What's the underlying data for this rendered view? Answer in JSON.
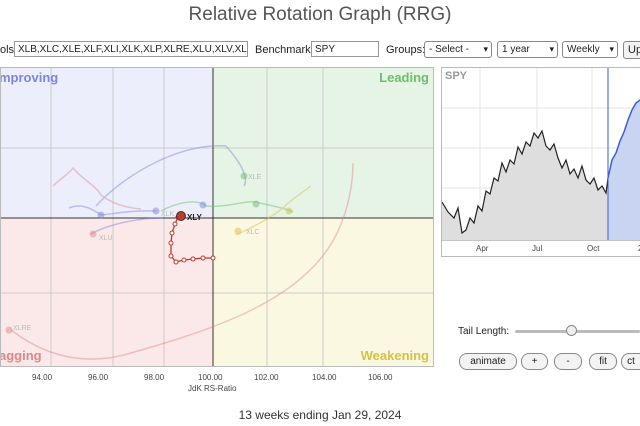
{
  "title": "Relative Rotation Graph (RRG)",
  "toolbar": {
    "symbols_label": "ols:",
    "symbols_value": "XLB,XLC,XLE,XLF,XLI,XLK,XLP,XLRE,XLU,XLV,XL",
    "benchmark_label": "Benchmark:",
    "benchmark_value": "SPY",
    "groups_label": "Groups:",
    "groups_value": "- Select -",
    "period_value": "1 year",
    "interval_value": "Weekly",
    "update_label": "Up"
  },
  "quadrants": {
    "improving": "mproving",
    "leading": "Leading",
    "lagging": "agging",
    "weakening": "Weakening"
  },
  "colors": {
    "improving": "#7c86d8",
    "leading": "#6cbf6c",
    "lagging": "#e08888",
    "weakening": "#d6c04a",
    "benchmark_line": "#3a5fd0"
  },
  "rrg": {
    "x_ticks": [
      "94.00",
      "96.00",
      "98.00",
      "100.00",
      "102.00",
      "104.00",
      "106.00"
    ],
    "x_label": "JdK RS-Ratio",
    "highlight_symbol": "XLY",
    "faded_labels": [
      "XLRE",
      "XLU",
      "XLC",
      "XLK",
      "XLE"
    ]
  },
  "benchmark_chart": {
    "symbol": "SPY",
    "month_ticks": [
      "Apr",
      "Jul",
      "Oct",
      "2"
    ]
  },
  "controls": {
    "tail_length_label": "Tail Length:",
    "tail_length": 0.45,
    "animate": "animate",
    "plus": "+",
    "minus": "-",
    "fit": "fit",
    "ctr": "ct"
  },
  "footer": "13 weeks ending Jan 29, 2024"
}
